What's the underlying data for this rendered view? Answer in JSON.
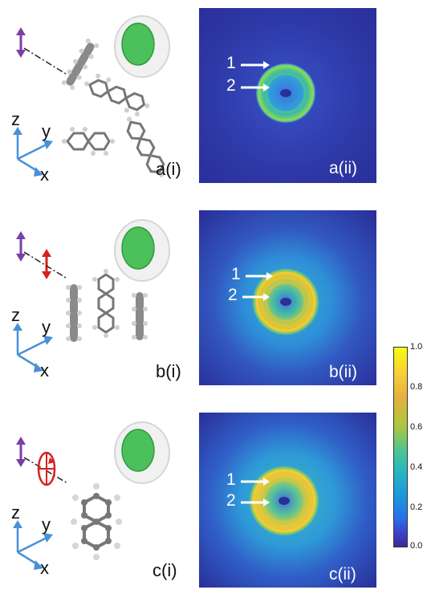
{
  "panels": [
    {
      "schematic_label": "a(i)",
      "image_label": "a(ii)",
      "ring_labels": [
        "1",
        "2"
      ],
      "axis_labels": {
        "z": "z",
        "y": "y",
        "x": "x"
      },
      "molecule_orientation": "disordered",
      "probe_polarization": "none"
    },
    {
      "schematic_label": "b(i)",
      "image_label": "b(ii)",
      "ring_labels": [
        "1",
        "2"
      ],
      "axis_labels": {
        "z": "z",
        "y": "y",
        "x": "x"
      },
      "molecule_orientation": "aligned-vertical",
      "probe_polarization": "linear-vertical"
    },
    {
      "schematic_label": "c(i)",
      "image_label": "c(ii)",
      "ring_labels": [
        "1",
        "2"
      ],
      "axis_labels": {
        "z": "z",
        "y": "y",
        "x": "x"
      },
      "molecule_orientation": "aligned-planar",
      "probe_polarization": "elliptical"
    }
  ],
  "colorbar": {
    "ticks": [
      "1.0",
      "0.8",
      "0.6",
      "0.4",
      "0.2",
      "0.0"
    ],
    "colormap": "parula"
  },
  "colors": {
    "pump_arrow": "#7a3fa8",
    "probe_arrow": "#d62020",
    "axis": "#4a90d9",
    "detector": "#3cb44b",
    "background_image": "#2a2f9a"
  }
}
